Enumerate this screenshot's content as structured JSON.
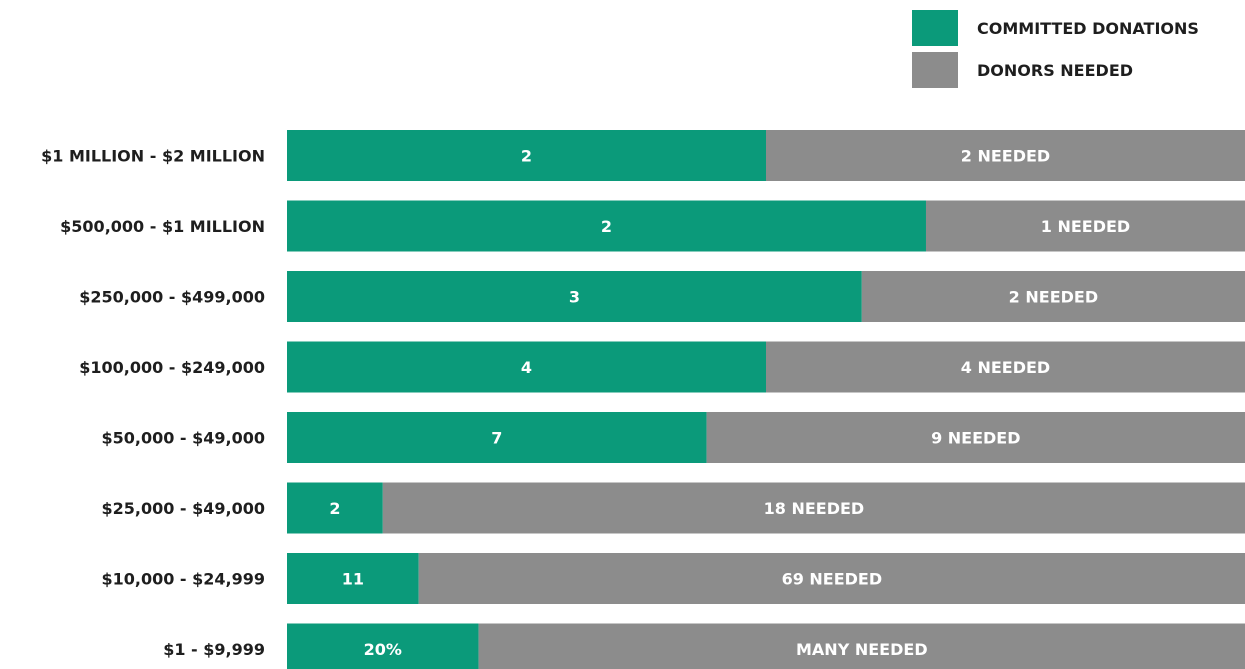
{
  "chart_data": {
    "type": "bar",
    "orientation": "horizontal",
    "stacked": true,
    "title": "",
    "xlabel": "",
    "ylabel": "",
    "categories": [
      "$1 MILLION - $2 MILLION",
      "$500,000 - $1 MILLION",
      "$250,000 - $499,000",
      "$100,000 - $249,000",
      "$50,000 - $49,000",
      "$25,000 - $49,000",
      "$10,000 - $24,999",
      "$1 - $9,999"
    ],
    "series": [
      {
        "name": "COMMITTED DONATIONS",
        "color": "#0b9a7a",
        "values": [
          2,
          2,
          3,
          4,
          7,
          2,
          11,
          null
        ],
        "fraction": [
          0.5,
          0.667,
          0.6,
          0.5,
          0.438,
          0.1,
          0.1375,
          0.2
        ],
        "labels": [
          "2",
          "2",
          "3",
          "4",
          "7",
          "2",
          "11",
          "20%"
        ]
      },
      {
        "name": "DONORS NEEDED",
        "color": "#8c8c8c",
        "values": [
          2,
          1,
          2,
          4,
          9,
          18,
          69,
          null
        ],
        "labels": [
          "2 NEEDED",
          "1 NEEDED",
          "2 NEEDED",
          "4 NEEDED",
          "9 NEEDED",
          "18 NEEDED",
          "69 NEEDED",
          "MANY NEEDED"
        ]
      }
    ],
    "legend": "top-right",
    "grid": false
  }
}
